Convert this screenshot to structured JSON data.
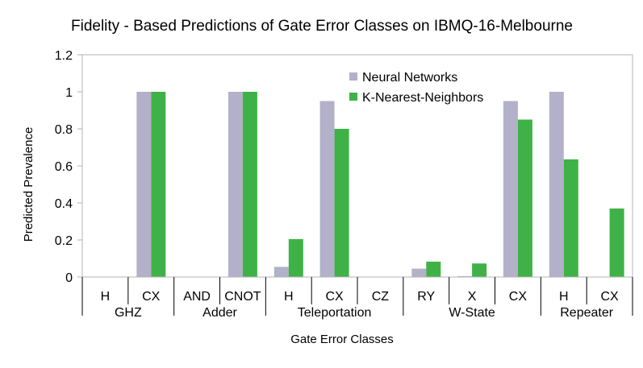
{
  "chart_data": {
    "type": "bar",
    "title": "Fidelity - Based Predictions of Gate Error Classes on IBMQ-16-Melbourne",
    "xlabel": "Gate Error Classes",
    "ylabel": "Predicted Prevalence",
    "ylim": [
      0,
      1.2
    ],
    "yticks": [
      "0",
      "0.2",
      "0.4",
      "0.6",
      "0.8",
      "1",
      "1.2"
    ],
    "grid": false,
    "legend_position": "top-right",
    "categories": [
      "H",
      "CX",
      "AND",
      "CNOT",
      "H",
      "CX",
      "CZ",
      "RY",
      "X",
      "CX",
      "H",
      "CX"
    ],
    "groups": [
      {
        "label": "GHZ",
        "span": 2
      },
      {
        "label": "Adder",
        "span": 2
      },
      {
        "label": "Teleportation",
        "span": 3
      },
      {
        "label": "W-State",
        "span": 3
      },
      {
        "label": "Repeater",
        "span": 2
      }
    ],
    "series": [
      {
        "name": "Neural Networks",
        "color": "#b3b0c9",
        "values": [
          0,
          1.0,
          0,
          1.0,
          0.055,
          0.95,
          0,
          0.045,
          0.005,
          0.95,
          1.0,
          0
        ]
      },
      {
        "name": "K-Nearest-Neighbors",
        "color": "#3fb247",
        "values": [
          0,
          1.0,
          0,
          1.0,
          0.205,
          0.8,
          0,
          0.083,
          0.073,
          0.85,
          0.635,
          0.37
        ]
      }
    ]
  }
}
